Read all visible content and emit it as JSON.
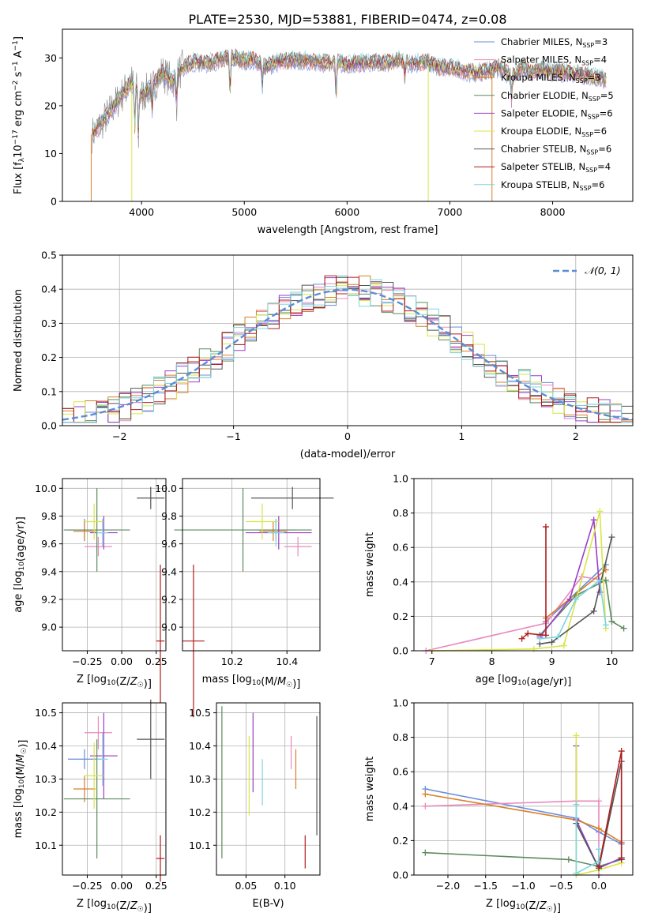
{
  "figure_title": "PLATE=2530, MJD=53881, FIBERID=0474, z=0.08",
  "colors": {
    "Chabrier MILES": "#6a8ddc",
    "Salpeter MILES": "#e889bd",
    "Kroupa MILES": "#d97f2a",
    "Chabrier ELODIE": "#5c8a5e",
    "Salpeter ELODIE": "#9a3ec6",
    "Kroupa ELODIE": "#d8e645",
    "Chabrier STELIB": "#555555",
    "Salpeter STELIB": "#b01c1c",
    "Kroupa STELIB": "#7fd6dd",
    "gaussian": "#5b8dd6",
    "data": "#888888"
  },
  "chart_data": [
    {
      "id": "spectrum",
      "type": "line",
      "title": "PLATE=2530, MJD=53881, FIBERID=0474, z=0.08",
      "xlabel": "wavelength [Angstrom, rest frame]",
      "ylabel": "Flux [fλ10⁻¹⁷ erg cm⁻² s⁻¹ A⁻¹]",
      "xlim": [
        3230,
        8780
      ],
      "ylim": [
        0,
        36
      ],
      "xticks": [
        4000,
        5000,
        6000,
        7000,
        8000
      ],
      "yticks": [
        0,
        10,
        20,
        30
      ],
      "legend_position": "right",
      "grid": false,
      "legend": [
        {
          "name": "Chabrier MILES",
          "nssp": "3"
        },
        {
          "name": "Salpeter MILES",
          "nssp": "4"
        },
        {
          "name": "Kroupa MILES",
          "nssp": "3"
        },
        {
          "name": "Chabrier ELODIE",
          "nssp": "5"
        },
        {
          "name": "Salpeter ELODIE",
          "nssp": "6"
        },
        {
          "name": "Kroupa ELODIE",
          "nssp": "6"
        },
        {
          "name": "Chabrier STELIB",
          "nssp": "6"
        },
        {
          "name": "Salpeter STELIB",
          "nssp": "4"
        },
        {
          "name": "Kroupa STELIB",
          "nssp": "6"
        }
      ],
      "continuum": [
        [
          3520,
          14
        ],
        [
          3600,
          16
        ],
        [
          3700,
          19
        ],
        [
          3800,
          22
        ],
        [
          3900,
          25
        ],
        [
          4000,
          22
        ],
        [
          4100,
          24
        ],
        [
          4200,
          27
        ],
        [
          4300,
          25
        ],
        [
          4400,
          28
        ],
        [
          4500,
          29
        ],
        [
          4600,
          29
        ],
        [
          4700,
          29
        ],
        [
          4800,
          30
        ],
        [
          4900,
          30
        ],
        [
          5000,
          29.5
        ],
        [
          5100,
          29.5
        ],
        [
          5200,
          28
        ],
        [
          5300,
          29
        ],
        [
          5400,
          29.5
        ],
        [
          5500,
          29.5
        ],
        [
          5600,
          29.5
        ],
        [
          5700,
          29
        ],
        [
          5800,
          29
        ],
        [
          5900,
          29
        ],
        [
          6000,
          28.5
        ],
        [
          6100,
          29
        ],
        [
          6200,
          29
        ],
        [
          6300,
          29
        ],
        [
          6400,
          29
        ],
        [
          6500,
          29.5
        ],
        [
          6600,
          29
        ],
        [
          6700,
          29
        ],
        [
          6800,
          29
        ],
        [
          6900,
          28
        ],
        [
          7000,
          28
        ],
        [
          7100,
          27.5
        ],
        [
          7200,
          27
        ],
        [
          7300,
          27
        ],
        [
          7400,
          27.5
        ],
        [
          7500,
          28
        ],
        [
          7600,
          26
        ],
        [
          7700,
          28
        ],
        [
          7800,
          27
        ],
        [
          7900,
          27.5
        ],
        [
          8000,
          27
        ],
        [
          8100,
          27
        ],
        [
          8200,
          27
        ],
        [
          8300,
          26.5
        ],
        [
          8400,
          26
        ],
        [
          8500,
          25.5
        ]
      ],
      "absorption_dips": [
        [
          3934,
          14
        ],
        [
          3969,
          13
        ],
        [
          4102,
          18
        ],
        [
          4340,
          20
        ],
        [
          4861,
          22
        ],
        [
          5175,
          24
        ],
        [
          5893,
          21
        ],
        [
          6563,
          26
        ],
        [
          7600,
          21
        ]
      ],
      "edge_drops": [
        [
          3510,
          0
        ],
        [
          3905,
          0
        ],
        [
          6790,
          0
        ],
        [
          7410,
          0
        ]
      ]
    },
    {
      "id": "residual_histogram",
      "type": "step",
      "xlabel": "(data-model)/error",
      "ylabel": "Normed distribution",
      "xlim": [
        -2.5,
        2.5
      ],
      "ylim": [
        0,
        0.5
      ],
      "xticks": [
        -2,
        -1,
        0,
        1,
        2
      ],
      "yticks": [
        0.0,
        0.1,
        0.2,
        0.3,
        0.4,
        0.5
      ],
      "grid": true,
      "legend_position": "top-right",
      "reference": {
        "name": "𝒩(0, 1)",
        "mean": 0,
        "sigma": 1
      },
      "bin_width": 0.1
    },
    {
      "id": "age_vs_Z",
      "type": "errorbar",
      "xlabel": "Z [log10(Z/Z☉)]",
      "ylabel": "age  [log10(age/yr)]",
      "xlim": [
        -0.43,
        0.32
      ],
      "ylim": [
        8.83,
        10.07
      ],
      "xticks": [
        -0.25,
        0.0,
        0.25
      ],
      "yticks": [
        9.0,
        9.2,
        9.4,
        9.6,
        9.8,
        10.0
      ],
      "grid": true,
      "points": [
        {
          "series": "Chabrier MILES",
          "x": -0.27,
          "y": 9.7,
          "xerr": 0.12,
          "yerr": 0.08
        },
        {
          "series": "Salpeter MILES",
          "x": -0.17,
          "y": 9.58,
          "xerr": 0.1,
          "yerr": 0.07
        },
        {
          "series": "Kroupa MILES",
          "x": -0.27,
          "y": 9.69,
          "xerr": 0.08,
          "yerr": 0.07
        },
        {
          "series": "Chabrier ELODIE",
          "x": -0.18,
          "y": 9.7,
          "xerr": 0.24,
          "yerr": 0.3
        },
        {
          "series": "Salpeter ELODIE",
          "x": -0.13,
          "y": 9.68,
          "xerr": 0.1,
          "yerr": 0.12
        },
        {
          "series": "Kroupa ELODIE",
          "x": -0.2,
          "y": 9.76,
          "xerr": 0.07,
          "yerr": 0.13
        },
        {
          "series": "Chabrier STELIB",
          "x": 0.21,
          "y": 9.93,
          "xerr": 0.1,
          "yerr": 0.08
        },
        {
          "series": "Salpeter STELIB",
          "x": 0.28,
          "y": 8.9,
          "xerr": 0.03,
          "yerr": 0.55
        },
        {
          "series": "Kroupa STELIB",
          "x": -0.14,
          "y": 9.68,
          "xerr": 0.04,
          "yerr": 0.1
        }
      ]
    },
    {
      "id": "age_vs_mass",
      "type": "errorbar",
      "xlabel": "mass [log10(M/M☉)]",
      "ylabel": "",
      "xlim": [
        10.02,
        10.52
      ],
      "ylim": [
        8.83,
        10.07
      ],
      "xticks": [
        10.2,
        10.4
      ],
      "yticks": [
        9.0,
        9.2,
        9.4,
        9.6,
        9.8,
        10.0
      ],
      "grid": true,
      "points": [
        {
          "series": "Chabrier MILES",
          "x": 10.36,
          "y": 9.7,
          "xerr": 0.07,
          "yerr": 0.08
        },
        {
          "series": "Salpeter MILES",
          "x": 10.44,
          "y": 9.58,
          "xerr": 0.05,
          "yerr": 0.07
        },
        {
          "series": "Kroupa MILES",
          "x": 10.35,
          "y": 9.69,
          "xerr": 0.05,
          "yerr": 0.07
        },
        {
          "series": "Chabrier ELODIE",
          "x": 10.24,
          "y": 9.7,
          "xerr": 0.25,
          "yerr": 0.3
        },
        {
          "series": "Salpeter ELODIE",
          "x": 10.37,
          "y": 9.68,
          "xerr": 0.12,
          "yerr": 0.12
        },
        {
          "series": "Kroupa ELODIE",
          "x": 10.31,
          "y": 9.76,
          "xerr": 0.06,
          "yerr": 0.13
        },
        {
          "series": "Chabrier STELIB",
          "x": 10.42,
          "y": 9.93,
          "xerr": 0.15,
          "yerr": 0.08
        },
        {
          "series": "Salpeter STELIB",
          "x": 10.06,
          "y": 8.9,
          "xerr": 0.04,
          "yerr": 0.55
        },
        {
          "series": "Kroupa STELIB",
          "x": 10.36,
          "y": 9.68,
          "xerr": 0.03,
          "yerr": 0.1
        }
      ]
    },
    {
      "id": "weight_vs_age",
      "type": "line",
      "xlabel": "age  [log10(age/yr)]",
      "ylabel": "mass weight",
      "xlim": [
        6.7,
        10.35
      ],
      "ylim": [
        0,
        1.0
      ],
      "xticks": [
        7,
        8,
        9,
        10
      ],
      "yticks": [
        0.0,
        0.2,
        0.4,
        0.6,
        0.8,
        1.0
      ],
      "grid": true,
      "series": [
        {
          "name": "Chabrier MILES",
          "points": [
            [
              8.9,
              0.17
            ],
            [
              9.9,
              0.5
            ]
          ]
        },
        {
          "name": "Salpeter MILES",
          "points": [
            [
              6.9,
              0.0
            ],
            [
              8.9,
              0.16
            ],
            [
              9.5,
              0.43
            ],
            [
              9.9,
              0.41
            ]
          ]
        },
        {
          "name": "Kroupa MILES",
          "points": [
            [
              8.9,
              0.19
            ],
            [
              9.9,
              0.47
            ]
          ]
        },
        {
          "name": "Chabrier ELODIE",
          "points": [
            [
              8.8,
              0.09
            ],
            [
              9.4,
              0.32
            ],
            [
              9.9,
              0.41
            ],
            [
              10.0,
              0.17
            ],
            [
              10.2,
              0.13
            ]
          ]
        },
        {
          "name": "Salpeter ELODIE",
          "points": [
            [
              8.8,
              0.08
            ],
            [
              9.3,
              0.3
            ],
            [
              9.7,
              0.76
            ],
            [
              9.8,
              0.34
            ]
          ]
        },
        {
          "name": "Kroupa ELODIE",
          "points": [
            [
              7.0,
              0.0
            ],
            [
              8.7,
              0.01
            ],
            [
              9.2,
              0.03
            ],
            [
              9.8,
              0.81
            ],
            [
              9.9,
              0.13
            ]
          ]
        },
        {
          "name": "Chabrier STELIB",
          "points": [
            [
              8.8,
              0.04
            ],
            [
              9.0,
              0.05
            ],
            [
              9.7,
              0.23
            ],
            [
              10.0,
              0.66
            ]
          ]
        },
        {
          "name": "Salpeter STELIB",
          "points": [
            [
              8.5,
              0.07
            ],
            [
              8.6,
              0.1
            ],
            [
              8.9,
              0.09
            ],
            [
              8.9,
              0.72
            ]
          ]
        },
        {
          "name": "Kroupa STELIB",
          "points": [
            [
              8.8,
              0.07
            ],
            [
              9.1,
              0.08
            ],
            [
              9.4,
              0.3
            ],
            [
              9.8,
              0.41
            ],
            [
              9.9,
              0.15
            ]
          ]
        }
      ]
    },
    {
      "id": "mass_vs_Z",
      "type": "errorbar",
      "xlabel": "Z [log10(Z/Z☉)]",
      "ylabel": "mass [log10(M/M☉)]",
      "xlim": [
        -0.43,
        0.32
      ],
      "ylim": [
        10.01,
        10.53
      ],
      "xticks": [
        -0.25,
        0.0,
        0.25
      ],
      "yticks": [
        10.1,
        10.2,
        10.3,
        10.4,
        10.5
      ],
      "grid": true,
      "points": [
        {
          "series": "Chabrier MILES",
          "x": -0.27,
          "y": 10.36,
          "xerr": 0.12,
          "yerr": 0.03
        },
        {
          "series": "Salpeter MILES",
          "x": -0.17,
          "y": 10.44,
          "xerr": 0.1,
          "yerr": 0.05
        },
        {
          "series": "Kroupa MILES",
          "x": -0.27,
          "y": 10.27,
          "xerr": 0.08,
          "yerr": 0.04
        },
        {
          "series": "Chabrier ELODIE",
          "x": -0.18,
          "y": 10.24,
          "xerr": 0.24,
          "yerr": 0.18
        },
        {
          "series": "Salpeter ELODIE",
          "x": -0.13,
          "y": 10.37,
          "xerr": 0.1,
          "yerr": 0.13
        },
        {
          "series": "Kroupa ELODIE",
          "x": -0.2,
          "y": 10.31,
          "xerr": 0.07,
          "yerr": 0.1
        },
        {
          "series": "Chabrier STELIB",
          "x": 0.21,
          "y": 10.42,
          "xerr": 0.1,
          "yerr": 0.12
        },
        {
          "series": "Salpeter STELIB",
          "x": 0.28,
          "y": 10.06,
          "xerr": 0.03,
          "yerr": 0.07
        },
        {
          "series": "Kroupa STELIB",
          "x": -0.14,
          "y": 10.36,
          "xerr": 0.04,
          "yerr": 0.08
        }
      ]
    },
    {
      "id": "mass_vs_ebv",
      "type": "errorbar",
      "xlabel": "E(B-V)",
      "ylabel": "",
      "xlim": [
        0.012,
        0.145
      ],
      "ylim": [
        10.01,
        10.53
      ],
      "xticks": [
        0.05,
        0.1
      ],
      "yticks": [
        10.1,
        10.2,
        10.3,
        10.4,
        10.5
      ],
      "grid": true,
      "points": [
        {
          "series": "Chabrier ELODIE",
          "x": 0.019,
          "y": 10.29,
          "yerr": 0.23
        },
        {
          "series": "Kroupa ELODIE",
          "x": 0.054,
          "y": 10.31,
          "yerr": 0.12
        },
        {
          "series": "Salpeter ELODIE",
          "x": 0.059,
          "y": 10.38,
          "yerr": 0.12
        },
        {
          "series": "Kroupa STELIB",
          "x": 0.071,
          "y": 10.29,
          "yerr": 0.07
        },
        {
          "series": "Salpeter MILES",
          "x": 0.108,
          "y": 10.38,
          "yerr": 0.05
        },
        {
          "series": "Kroupa MILES",
          "x": 0.114,
          "y": 10.33,
          "yerr": 0.06
        },
        {
          "series": "Salpeter STELIB",
          "x": 0.126,
          "y": 10.08,
          "yerr": 0.05
        },
        {
          "series": "Chabrier STELIB",
          "x": 0.141,
          "y": 10.31,
          "yerr": 0.18
        }
      ]
    },
    {
      "id": "weight_vs_Z",
      "type": "line",
      "xlabel": "Z [log10(Z/Z☉)]",
      "ylabel": "mass weight",
      "xlim": [
        -2.45,
        0.45
      ],
      "ylim": [
        0,
        1.0
      ],
      "xticks": [
        -2.0,
        -1.5,
        -1.0,
        -0.5,
        0.0
      ],
      "yticks": [
        0.0,
        0.2,
        0.4,
        0.6,
        0.8,
        1.0
      ],
      "grid": true,
      "series": [
        {
          "name": "Chabrier MILES",
          "points": [
            [
              -2.3,
              0.5
            ],
            [
              -0.3,
              0.33
            ],
            [
              0.0,
              0.25
            ],
            [
              0.3,
              0.18
            ]
          ]
        },
        {
          "name": "Salpeter MILES",
          "points": [
            [
              -2.3,
              0.4
            ],
            [
              -0.3,
              0.43
            ],
            [
              0.0,
              0.43
            ],
            [
              0.0,
              0.0
            ]
          ]
        },
        {
          "name": "Kroupa MILES",
          "points": [
            [
              -2.3,
              0.47
            ],
            [
              -0.3,
              0.32
            ],
            [
              0.0,
              0.27
            ],
            [
              0.3,
              0.19
            ]
          ]
        },
        {
          "name": "Chabrier ELODIE",
          "points": [
            [
              -2.3,
              0.13
            ],
            [
              -0.4,
              0.09
            ],
            [
              0.0,
              0.05
            ],
            [
              0.3,
              0.09
            ]
          ]
        },
        {
          "name": "Salpeter ELODIE",
          "points": [
            [
              -0.3,
              0.75
            ],
            [
              -0.3,
              0.32
            ],
            [
              0.0,
              0.04
            ],
            [
              0.3,
              0.1
            ]
          ]
        },
        {
          "name": "Kroupa ELODIE",
          "points": [
            [
              -0.3,
              0.81
            ],
            [
              -0.3,
              0.0
            ],
            [
              0.0,
              0.03
            ],
            [
              0.3,
              0.07
            ]
          ]
        },
        {
          "name": "Chabrier STELIB",
          "points": [
            [
              -0.3,
              0.3
            ],
            [
              0.0,
              0.04
            ],
            [
              0.3,
              0.66
            ],
            [
              0.3,
              0.1
            ]
          ]
        },
        {
          "name": "Salpeter STELIB",
          "points": [
            [
              0.0,
              0.05
            ],
            [
              0.3,
              0.72
            ],
            [
              0.3,
              0.09
            ]
          ]
        },
        {
          "name": "Kroupa STELIB",
          "points": [
            [
              -0.3,
              0.41
            ],
            [
              -0.3,
              0.01
            ],
            [
              0.0,
              0.08
            ],
            [
              0.0,
              0.15
            ]
          ]
        }
      ]
    }
  ]
}
